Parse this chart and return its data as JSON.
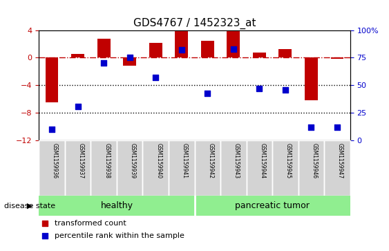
{
  "title": "GDS4767 / 1452323_at",
  "samples": [
    "GSM1159936",
    "GSM1159937",
    "GSM1159938",
    "GSM1159939",
    "GSM1159940",
    "GSM1159941",
    "GSM1159942",
    "GSM1159943",
    "GSM1159944",
    "GSM1159945",
    "GSM1159946",
    "GSM1159947"
  ],
  "transformed_count": [
    -6.5,
    0.6,
    2.8,
    -1.2,
    2.2,
    4.0,
    2.5,
    3.9,
    0.8,
    1.3,
    -6.2,
    -0.2
  ],
  "percentile_rank": [
    10,
    31,
    70,
    75,
    57,
    82,
    43,
    83,
    47,
    46,
    12,
    12
  ],
  "healthy_count": 6,
  "group_labels": [
    "healthy",
    "pancreatic tumor"
  ],
  "group_colors": [
    "#90EE90",
    "#7FD97F"
  ],
  "bar_color": "#C00000",
  "dot_color": "#0000CC",
  "ylim_left": [
    -12,
    4
  ],
  "ylim_right": [
    0,
    100
  ],
  "yticks_left": [
    -12,
    -8,
    -4,
    0,
    4
  ],
  "yticks_right": [
    0,
    25,
    50,
    75,
    100
  ],
  "hline_y": 0,
  "dotted_lines": [
    -4,
    -8
  ],
  "legend_items": [
    "transformed count",
    "percentile rank within the sample"
  ],
  "disease_state_label": "disease state",
  "background_color": "#ffffff"
}
